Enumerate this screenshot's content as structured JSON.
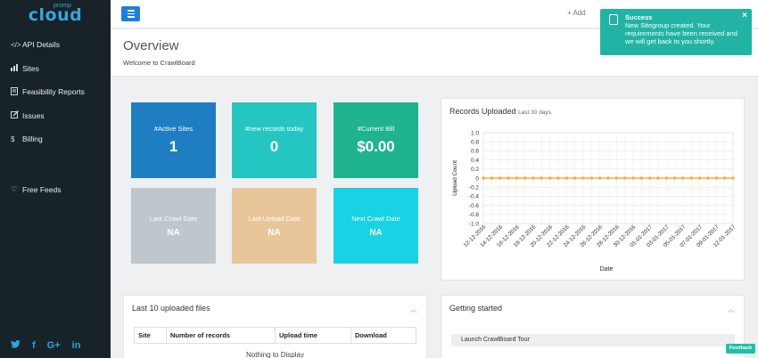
{
  "app": {
    "logo_pre": "promp",
    "logo": "cloud"
  },
  "sidebar": {
    "items": [
      {
        "icon": "code-icon",
        "label": "API Details"
      },
      {
        "icon": "bar-chart-icon",
        "label": "Sites"
      },
      {
        "icon": "document-icon",
        "label": "Feasibility Reports"
      },
      {
        "icon": "edit-icon",
        "label": "Issues"
      },
      {
        "icon": "dollar-icon",
        "label": "Billing"
      }
    ],
    "free_feeds": {
      "icon": "heart-icon",
      "label": "Free Feeds"
    },
    "social": [
      "twitter-icon",
      "facebook-icon",
      "google-plus-icon",
      "linkedin-icon"
    ]
  },
  "topbar": {
    "add_label": "+ Add"
  },
  "overview": {
    "title": "Overview",
    "subtitle": "Welcome to CrawlBoard"
  },
  "toast": {
    "title": "Success",
    "message": "New Sitegroup created. Your requirements have been received and we will get back to you shortly.",
    "close": "×"
  },
  "cards": [
    {
      "label": "#Active Sites",
      "value": "1",
      "color": "#1f7ec2"
    },
    {
      "label": "#new records today",
      "value": "0",
      "color": "#25c5c1"
    },
    {
      "label": "#Current Bill",
      "value": "$0.00",
      "color": "#1fb38f"
    },
    {
      "label": "Last Crawl Date",
      "value": "NA",
      "color": "#bfc6cc"
    },
    {
      "label": "Last Upload Date",
      "value": "NA",
      "color": "#e9c69a"
    },
    {
      "label": "Next Crawl Date",
      "value": "NA",
      "color": "#19d2e3"
    }
  ],
  "records_panel": {
    "title": "Records Uploaded",
    "subtitle": "Last 30 days."
  },
  "chart_data": {
    "type": "line",
    "title": "",
    "xlabel": "Date",
    "ylabel": "Upload Count",
    "ylim": [
      -1.0,
      1.0
    ],
    "yticks": [
      "1.0",
      "0.8",
      "0.6",
      "0.4",
      "0.2",
      "0",
      "-0.2",
      "-0.4",
      "-0.6",
      "-0.8",
      "-1.0"
    ],
    "x_tick_labels": [
      "12-12-2016",
      "14-12-2016",
      "16-12-2016",
      "18-12-2016",
      "20-12-2016",
      "22-12-2016",
      "24-12-2016",
      "26-12-2016",
      "28-12-2016",
      "30-12-2016",
      "01-01-2017",
      "03-01-2017",
      "05-01-2017",
      "07-01-2017",
      "09-01-2017",
      "12-01-2017"
    ],
    "x": [
      "12-12-2016",
      "13-12-2016",
      "14-12-2016",
      "15-12-2016",
      "16-12-2016",
      "17-12-2016",
      "18-12-2016",
      "19-12-2016",
      "20-12-2016",
      "21-12-2016",
      "22-12-2016",
      "23-12-2016",
      "24-12-2016",
      "25-12-2016",
      "26-12-2016",
      "27-12-2016",
      "28-12-2016",
      "29-12-2016",
      "30-12-2016",
      "31-12-2016",
      "01-01-2017",
      "02-01-2017",
      "03-01-2017",
      "04-01-2017",
      "05-01-2017",
      "06-01-2017",
      "07-01-2017",
      "08-01-2017",
      "09-01-2017",
      "10-01-2017",
      "12-01-2017"
    ],
    "series": [
      {
        "values": [
          0,
          0,
          0,
          0,
          0,
          0,
          0,
          0,
          0,
          0,
          0,
          0,
          0,
          0,
          0,
          0,
          0,
          0,
          0,
          0,
          0,
          0,
          0,
          0,
          0,
          0,
          0,
          0,
          0,
          0,
          0
        ],
        "color": "#f5b041"
      }
    ],
    "grid": true
  },
  "files_panel": {
    "title": "Last 10 uploaded files",
    "columns": [
      "Site",
      "Number of records",
      "Upload time",
      "Download"
    ],
    "empty": "Nothing to Display"
  },
  "getting_started": {
    "title": "Getting started",
    "tour": "Launch CrawlBoard Tour"
  },
  "feedback": "Feedback"
}
